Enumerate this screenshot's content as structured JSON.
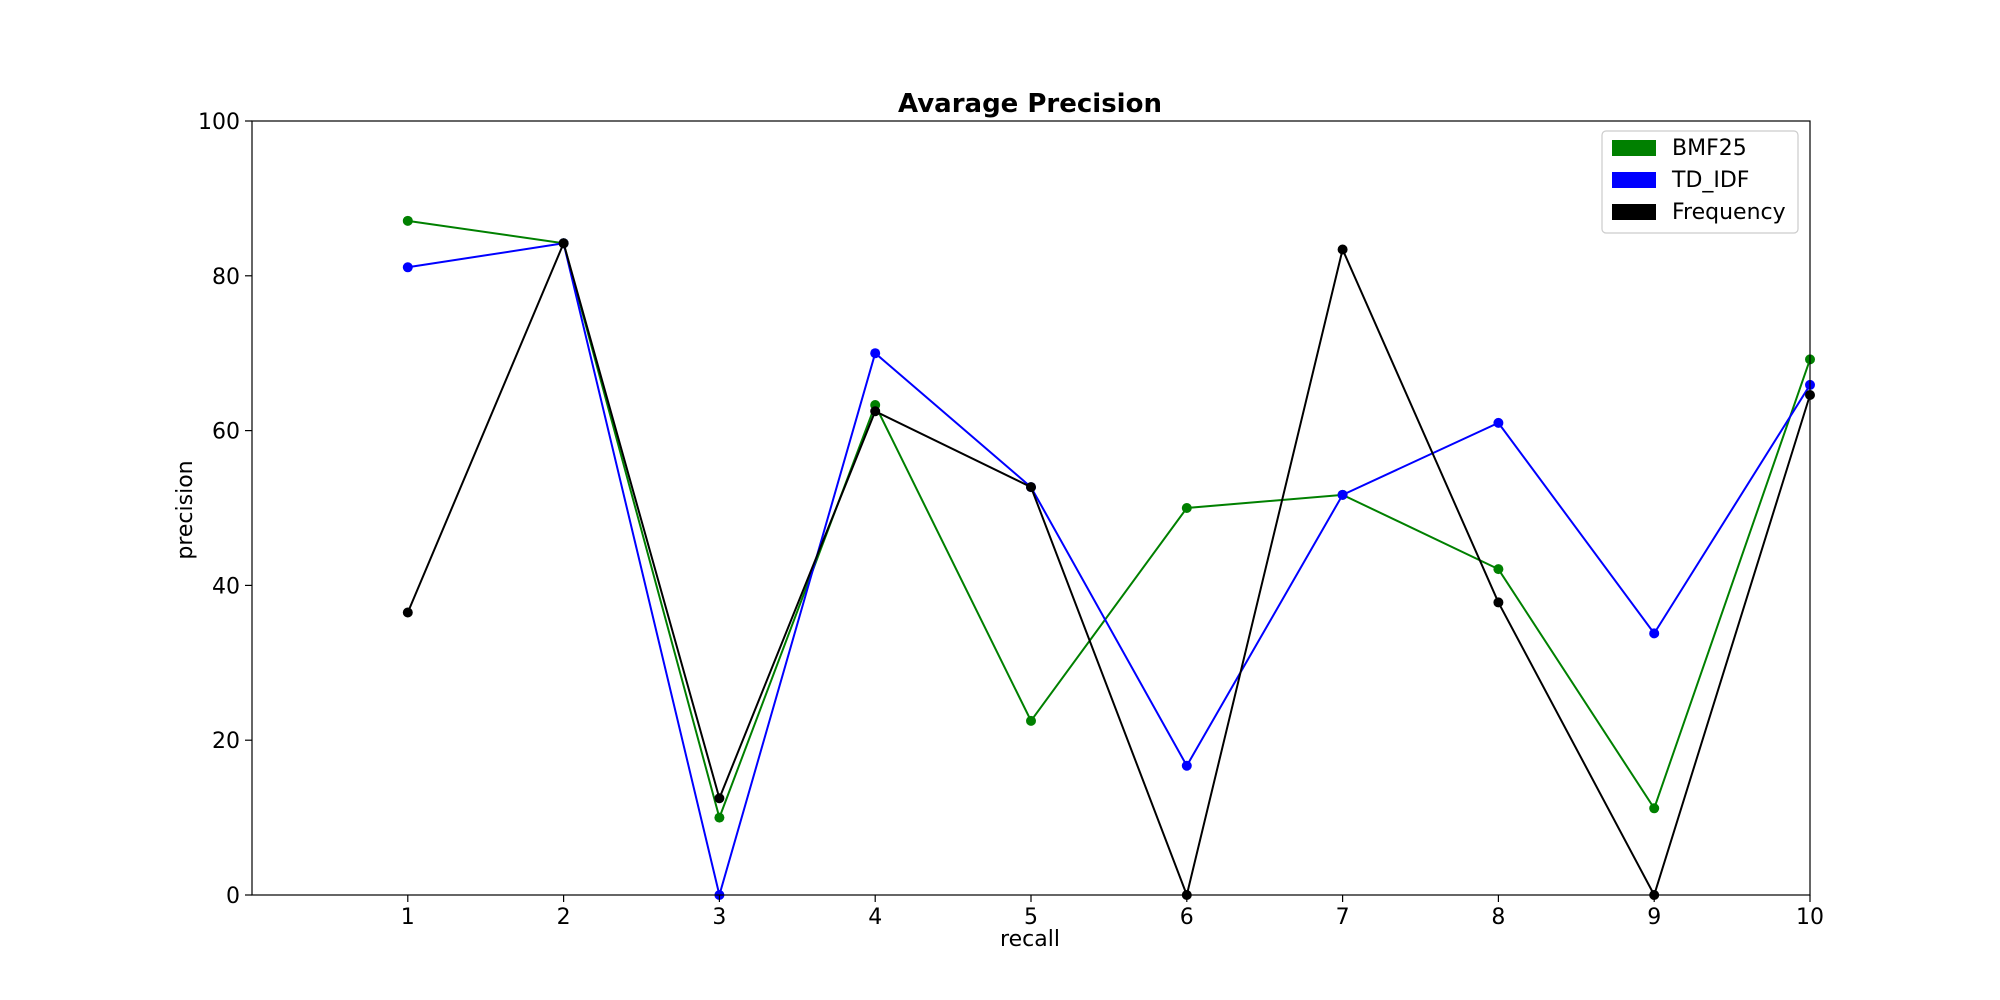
{
  "chart_data": {
    "type": "line",
    "title": "Avarage Precision",
    "xlabel": "recall",
    "ylabel": "precision",
    "x": [
      1,
      2,
      3,
      4,
      5,
      6,
      7,
      8,
      9,
      10
    ],
    "xlim": [
      0,
      10
    ],
    "ylim": [
      0,
      100
    ],
    "xticks": [
      "1",
      "2",
      "3",
      "4",
      "5",
      "6",
      "7",
      "8",
      "9",
      "10"
    ],
    "yticks": [
      "0",
      "20",
      "40",
      "60",
      "80",
      "100"
    ],
    "grid": false,
    "legend_position": "top-right",
    "series": [
      {
        "name": "BMF25",
        "color": "#008000",
        "values": [
          87.1,
          84.2,
          10.0,
          63.3,
          22.5,
          50.0,
          51.7,
          42.1,
          11.2,
          69.2
        ]
      },
      {
        "name": "TD_IDF",
        "color": "#0000ff",
        "values": [
          81.1,
          84.2,
          0.0,
          70.0,
          52.7,
          16.7,
          51.7,
          61.0,
          33.8,
          65.9
        ]
      },
      {
        "name": "Frequency",
        "color": "#000000",
        "values": [
          36.5,
          84.2,
          12.5,
          62.5,
          52.7,
          0.0,
          83.4,
          37.8,
          0.0,
          64.6
        ]
      }
    ]
  }
}
